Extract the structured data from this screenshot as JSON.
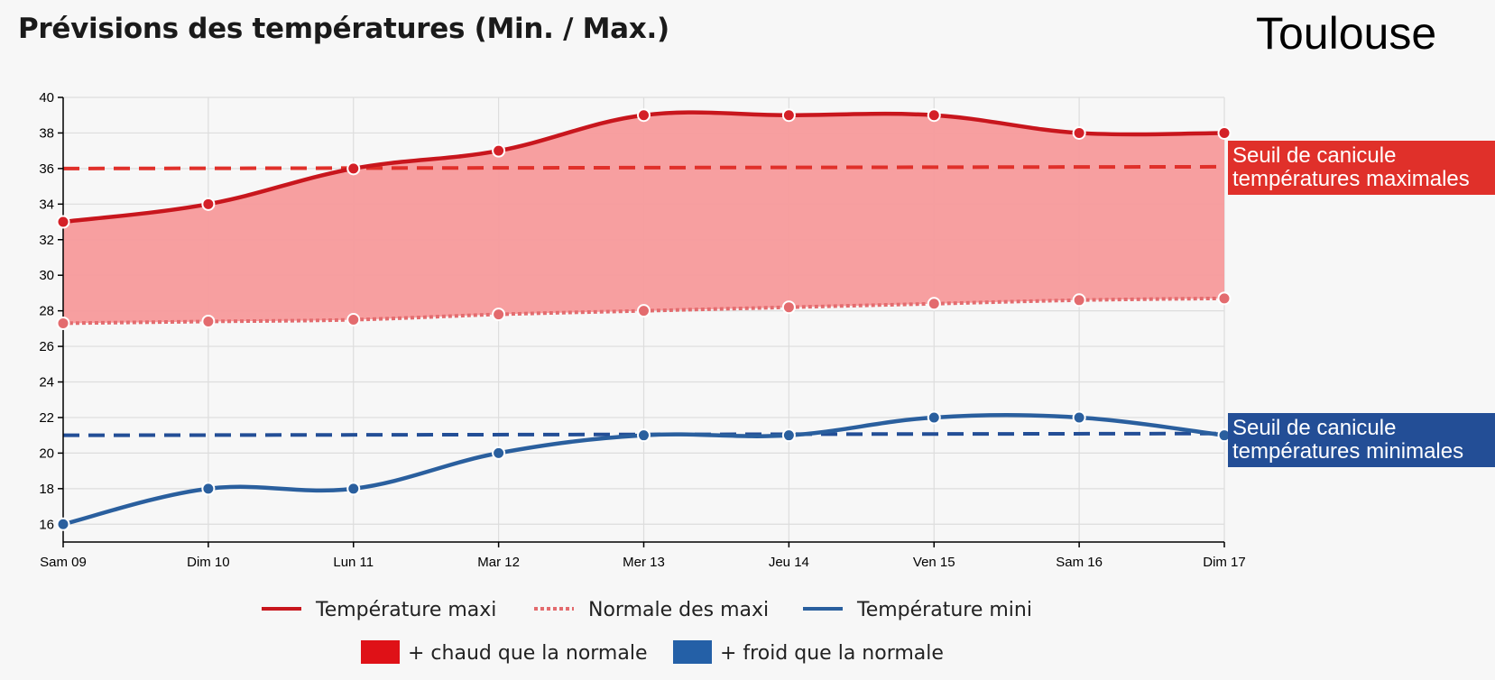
{
  "header": {
    "title": "Prévisions des températures (Min. / Max.)",
    "city": "Toulouse"
  },
  "colors": {
    "max_line": "#c8161d",
    "max_point": "#d42027",
    "normal_max": "#e36b6e",
    "max_area": "#f79a9b",
    "min_line": "#2a5f9e",
    "threshold_max": "#e0302a",
    "threshold_min": "#234e96",
    "hot_legend": "#df1117",
    "cold_legend": "#2460a7",
    "grid": "#dddddd"
  },
  "chart_data": {
    "type": "line",
    "categories": [
      "Sam 09",
      "Dim 10",
      "Lun 11",
      "Mar 12",
      "Mer 13",
      "Jeu 14",
      "Ven 15",
      "Sam 16",
      "Dim 17"
    ],
    "ylim": [
      15,
      40
    ],
    "yticks": [
      16,
      18,
      20,
      22,
      24,
      26,
      28,
      30,
      32,
      34,
      36,
      38,
      40
    ],
    "grid": true,
    "series": [
      {
        "name": "Température maxi",
        "values": [
          33,
          34,
          36,
          37,
          39,
          39,
          39,
          38,
          38
        ]
      },
      {
        "name": "Normale des maxi",
        "values": [
          27.3,
          27.4,
          27.5,
          27.8,
          28.0,
          28.2,
          28.4,
          28.6,
          28.7
        ]
      },
      {
        "name": "Température mini",
        "values": [
          16,
          18,
          18,
          20,
          21,
          21,
          22,
          22,
          21
        ]
      }
    ],
    "thresholds": [
      {
        "label_lines": [
          "Seuil de canicule",
          "températures maximales"
        ],
        "start": 36.0,
        "end": 36.1
      },
      {
        "label_lines": [
          "Seuil de canicule",
          "températures minimales"
        ],
        "start": 21.0,
        "end": 21.1
      }
    ],
    "legend": {
      "lines": [
        "Température maxi",
        "Normale des maxi",
        "Température mini"
      ],
      "patches": [
        "+ chaud que la normale",
        "+ froid que la normale"
      ]
    }
  }
}
